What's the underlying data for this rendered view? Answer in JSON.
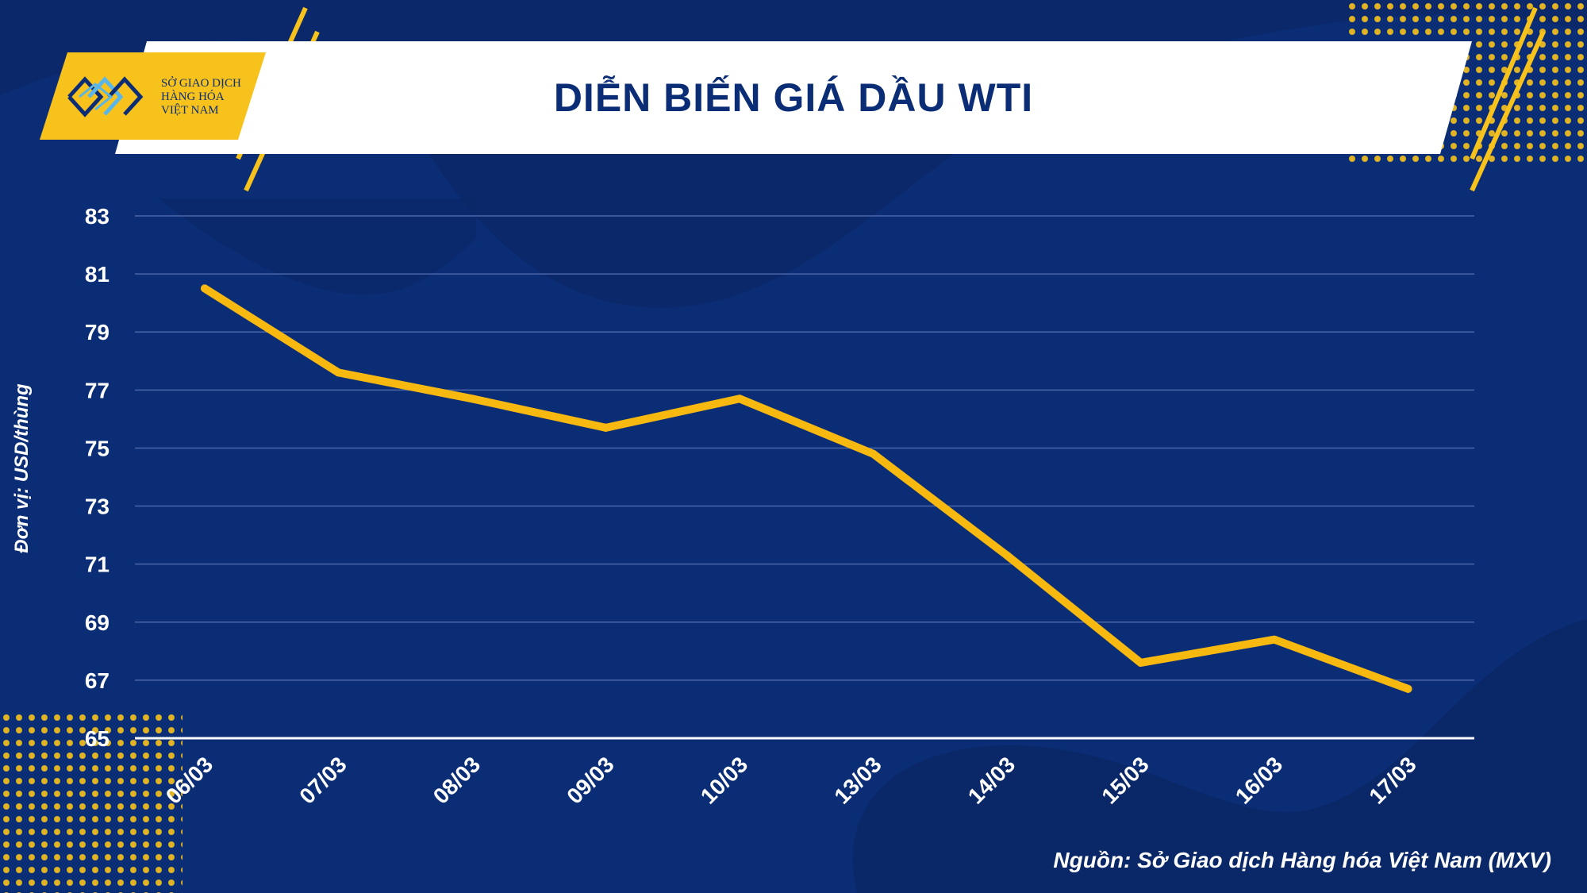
{
  "header": {
    "title": "DIỄN BIẾN GIÁ DẦU WTI"
  },
  "logo": {
    "line1": "SỞ GIAO DỊCH",
    "line2": "HÀNG HÓA",
    "line3": "VIỆT NAM"
  },
  "source": "Nguồn: Sở Giao dịch Hàng hóa Việt Nam (MXV)",
  "colors": {
    "background": "#0b2d75",
    "line": "#f7b90f",
    "accent": "#f7c21c",
    "text": "#ffffff"
  },
  "chart_data": {
    "type": "line",
    "title": "DIỄN BIẾN GIÁ DẦU WTI",
    "xlabel": "",
    "ylabel": "Đơn vị: USD/thùng",
    "categories": [
      "06/03",
      "07/03",
      "08/03",
      "09/03",
      "10/03",
      "13/03",
      "14/03",
      "15/03",
      "16/03",
      "17/03"
    ],
    "series": [
      {
        "values": [
          80.5,
          77.6,
          76.7,
          75.7,
          76.7,
          74.8,
          71.3,
          67.6,
          68.4,
          66.7
        ]
      }
    ],
    "yticks": [
      65,
      67,
      69,
      71,
      73,
      75,
      77,
      79,
      81,
      83
    ],
    "ylim": [
      65,
      83
    ],
    "grid": true
  }
}
